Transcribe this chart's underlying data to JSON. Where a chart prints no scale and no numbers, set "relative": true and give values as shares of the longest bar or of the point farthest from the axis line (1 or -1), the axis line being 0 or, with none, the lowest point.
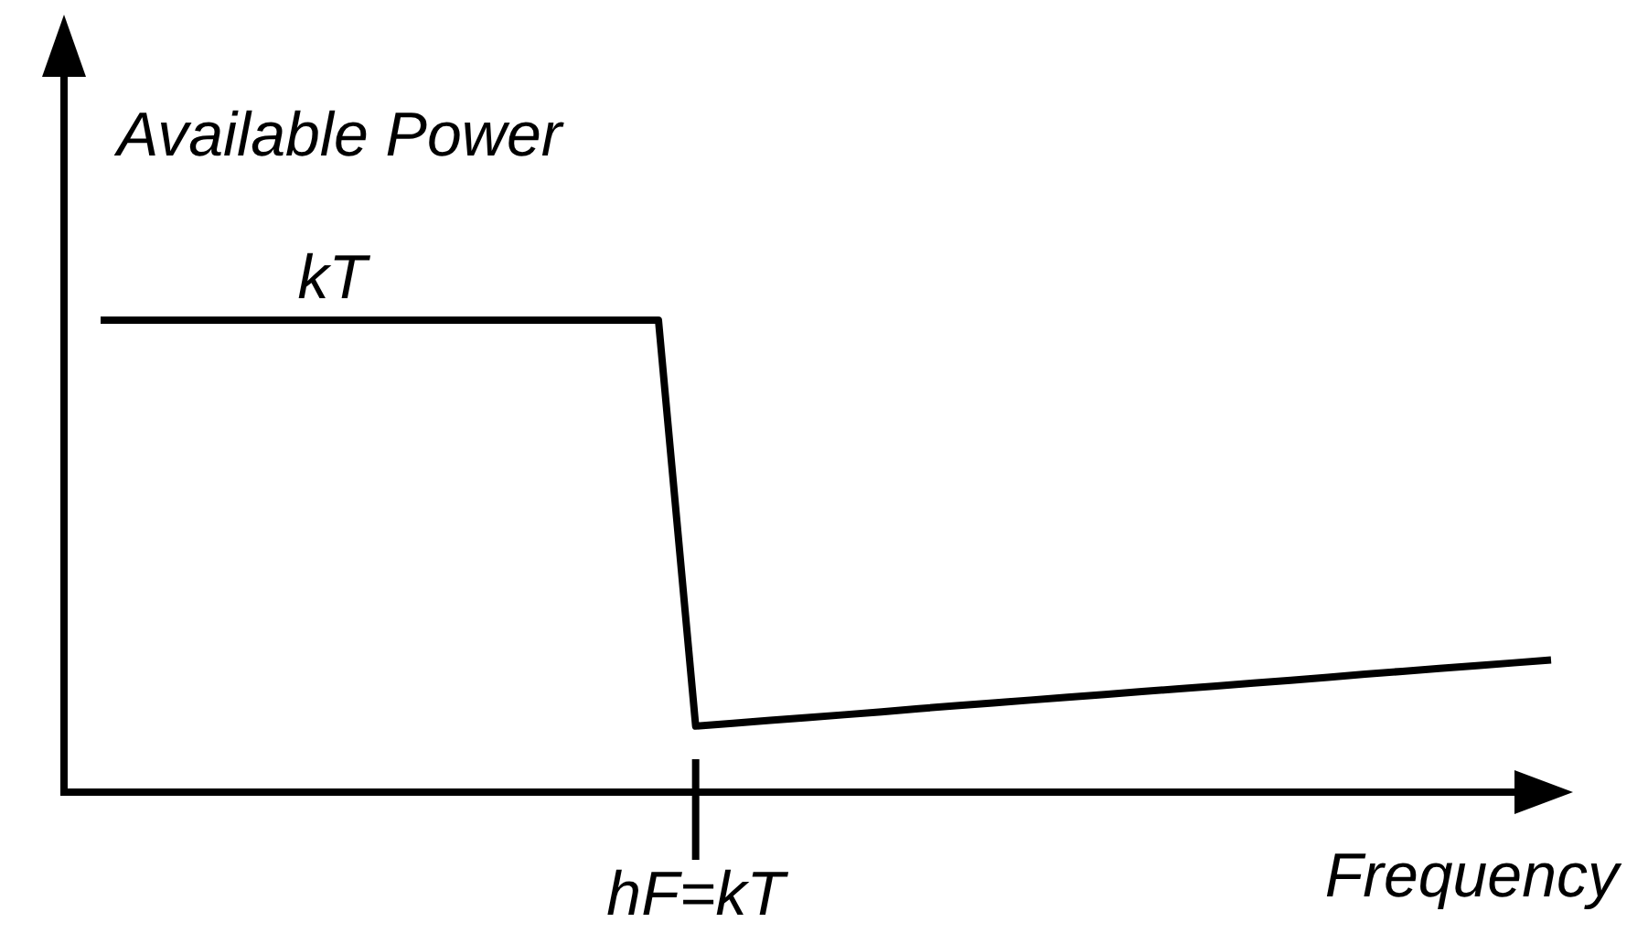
{
  "chart_data": {
    "type": "line",
    "relative": true,
    "xlabel": "Frequency",
    "ylabel": "Available Power",
    "categories": [
      null,
      null,
      null,
      null,
      null,
      null,
      null,
      null,
      null,
      null,
      null,
      null,
      null,
      null,
      null,
      null,
      null,
      null,
      null,
      null,
      null,
      null,
      null,
      null,
      null,
      null,
      null,
      null,
      null,
      null,
      null,
      null,
      null,
      null,
      null,
      null,
      null,
      null,
      null,
      null
    ],
    "series": [
      {
        "color": "#000000",
        "values": [
          1,
          1,
          1,
          1,
          1,
          1,
          1,
          1,
          1,
          1,
          1,
          1,
          1,
          1,
          1,
          1,
          0.14,
          0.146,
          0.152,
          0.158,
          0.164,
          0.17,
          0.177,
          0.183,
          0.189,
          0.195,
          0.201,
          0.207,
          0.213,
          0.219,
          0.225,
          0.231,
          0.237,
          0.243,
          0.25,
          0.256,
          0.262,
          0.268,
          0.274,
          0.28
        ]
      }
    ],
    "annotations": [
      {
        "text": "kT",
        "y": 1
      },
      "hF=kT"
    ],
    "marker": "none",
    "line_style": "solid"
  }
}
